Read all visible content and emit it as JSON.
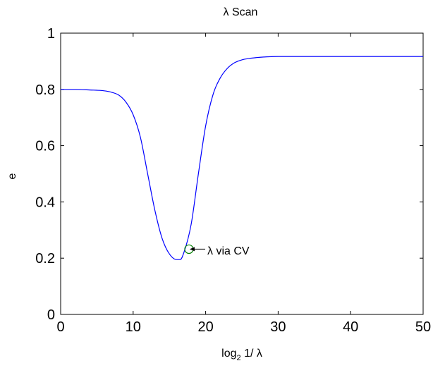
{
  "chart_data": {
    "type": "line",
    "title": "λ Scan",
    "xlabel": {
      "base": "log",
      "subscript": "2",
      "rest": " 1/ λ"
    },
    "ylabel": "e",
    "xlim": [
      0,
      50
    ],
    "ylim": [
      0,
      1
    ],
    "xticks": [
      0,
      10,
      20,
      30,
      40,
      50
    ],
    "xtick_labels": [
      "0",
      "10",
      "20",
      "30",
      "40",
      "50"
    ],
    "yticks": [
      0,
      0.2,
      0.4,
      0.6,
      0.8,
      1
    ],
    "ytick_labels": [
      "0",
      "0.2",
      "0.4",
      "0.6",
      "0.8",
      "1"
    ],
    "grid": false,
    "series": [
      {
        "color": "#0000ff",
        "x": [
          0,
          2,
          4,
          6,
          7,
          8,
          9,
          10,
          11,
          12,
          13,
          14,
          15,
          16,
          16.5,
          17,
          18,
          19,
          20,
          21,
          22,
          23,
          24,
          25,
          26,
          27,
          28,
          30,
          35,
          40,
          45,
          50
        ],
        "y": [
          0.8,
          0.8,
          0.798,
          0.795,
          0.79,
          0.78,
          0.755,
          0.71,
          0.63,
          0.5,
          0.37,
          0.27,
          0.215,
          0.195,
          0.195,
          0.22,
          0.32,
          0.5,
          0.67,
          0.78,
          0.84,
          0.875,
          0.895,
          0.905,
          0.91,
          0.913,
          0.915,
          0.917,
          0.917,
          0.917,
          0.917,
          0.917
        ]
      }
    ],
    "marker": {
      "x": 17.7,
      "y": 0.232,
      "shape": "circle",
      "color": "#008000"
    },
    "annotation": {
      "text": "λ via CV",
      "arrow": "left"
    }
  }
}
